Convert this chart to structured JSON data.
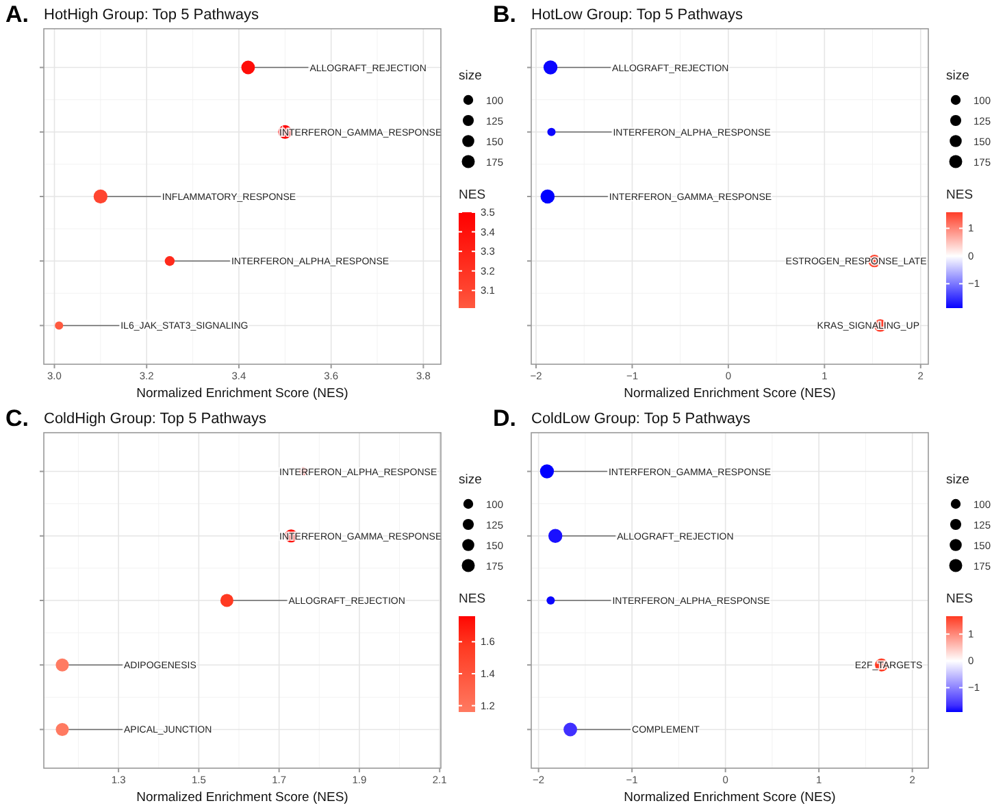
{
  "chart_data": [
    {
      "type": "bubble",
      "annotations": [
        "A."
      ],
      "title": "HotHigh Group: Top 5 Pathways",
      "xlabel": "Normalized Enrichment Score (NES)",
      "orientation": "horizontal",
      "tick_labels": "x",
      "grid": true,
      "legend_title": "size",
      "size_legend": [
        100,
        125,
        150,
        175
      ],
      "clabel": "NES",
      "clim": [
        3.01,
        3.5
      ],
      "cticks": [
        3.1,
        3.2,
        3.3,
        3.4,
        3.5
      ],
      "xlim": [
        2.977,
        3.838
      ],
      "xticks": [
        {
          "value": 3,
          "label": "3.0"
        },
        3.2,
        3.4,
        3.6,
        3.8
      ],
      "categories": [
        "ALLOGRAFT_REJECTION",
        "INTERFERON_GAMMA_RESPONSE",
        "INFLAMMATORY_RESPONSE",
        "INTERFERON_ALPHA_RESPONSE",
        "IL6_JAK_STAT3_SIGNALING"
      ],
      "values": [
        3.42,
        3.5,
        3.1,
        3.25,
        3.01
      ],
      "sizes": [
        190,
        190,
        200,
        100,
        71
      ],
      "cvalues": [
        3.42,
        3.5,
        3.1,
        3.25,
        3.01
      ],
      "colors": [
        "#ff0d08",
        "#ff0000",
        "#ff4530",
        "#ff2a1c",
        "#ff5a40"
      ]
    },
    {
      "type": "bubble",
      "annotations": [
        "B."
      ],
      "title": "HotLow Group: Top 5 Pathways",
      "xlabel": "Normalized Enrichment Score (NES)",
      "orientation": "horizontal",
      "tick_labels": "x",
      "grid": true,
      "legend_title": "size",
      "size_legend": [
        100,
        125,
        150,
        175
      ],
      "clabel": "NES",
      "clim": [
        -1.88,
        1.58
      ],
      "cticks": [
        {
          "value": -1,
          "label": "−1"
        },
        0,
        1
      ],
      "xlim": [
        -2.05,
        2.08
      ],
      "xticks": [
        {
          "value": -2,
          "label": "−2"
        },
        {
          "value": -1,
          "label": "−1"
        },
        0,
        1,
        2
      ],
      "categories": [
        "ALLOGRAFT_REJECTION",
        "INTERFERON_ALPHA_RESPONSE",
        "INTERFERON_GAMMA_RESPONSE",
        "ESTROGEN_RESPONSE_LATE",
        "KRAS_SIGNALING_UP"
      ],
      "values": [
        -1.85,
        -1.84,
        -1.88,
        1.52,
        1.58
      ],
      "sizes": [
        200,
        71,
        205,
        160,
        160
      ],
      "cvalues": [
        -1.85,
        -1.84,
        -1.88,
        1.52,
        1.58
      ],
      "colors": [
        "#0a05ff",
        "#0c06ff",
        "#0000ff",
        "#ff4530",
        "#ff3d2a"
      ]
    },
    {
      "type": "bubble",
      "annotations": [
        "C."
      ],
      "title": "ColdHigh Group: Top 5 Pathways",
      "xlabel": "Normalized Enrichment Score (NES)",
      "orientation": "horizontal",
      "tick_labels": "x",
      "grid": true,
      "legend_title": "size",
      "size_legend": [
        100,
        125,
        150,
        175
      ],
      "clabel": "NES",
      "clim": [
        1.16,
        1.76
      ],
      "cticks": [
        1.2,
        1.4,
        1.6
      ],
      "xlim": [
        1.114,
        2.103
      ],
      "xticks": [
        1.3,
        1.5,
        1.7,
        1.9,
        2.1
      ],
      "categories": [
        "INTERFERON_ALPHA_RESPONSE",
        "INTERFERON_GAMMA_RESPONSE",
        "ALLOGRAFT_REJECTION",
        "ADIPOGENESIS",
        "APICAL_JUNCTION"
      ],
      "values": [
        1.76,
        1.73,
        1.57,
        1.16,
        1.16
      ],
      "sizes": [
        70,
        175,
        175,
        175,
        175
      ],
      "cvalues": [
        1.76,
        1.73,
        1.57,
        1.16,
        1.16
      ],
      "colors": [
        "#ff0000",
        "#ff1008",
        "#ff3a22",
        "#ff7b62",
        "#ff7a61"
      ]
    },
    {
      "type": "bubble",
      "annotations": [
        "D."
      ],
      "title": "ColdLow Group: Top 5 Pathways",
      "xlabel": "Normalized Enrichment Score (NES)",
      "orientation": "horizontal",
      "tick_labels": "x",
      "grid": true,
      "legend_title": "size",
      "size_legend": [
        100,
        125,
        150,
        175
      ],
      "clabel": "NES",
      "clim": [
        -1.91,
        1.67
      ],
      "cticks": [
        {
          "value": -1,
          "label": "−1"
        },
        0,
        1
      ],
      "xlim": [
        -2.078,
        2.171
      ],
      "xticks": [
        {
          "value": -2,
          "label": "−2"
        },
        {
          "value": -1,
          "label": "−1"
        },
        0,
        1,
        2
      ],
      "categories": [
        "INTERFERON_GAMMA_RESPONSE",
        "ALLOGRAFT_REJECTION",
        "INTERFERON_ALPHA_RESPONSE",
        "E2F_TARGETS",
        "COMPLEMENT"
      ],
      "values": [
        -1.91,
        -1.82,
        -1.87,
        1.67,
        -1.66
      ],
      "sizes": [
        200,
        200,
        71,
        175,
        190
      ],
      "cvalues": [
        -1.91,
        -1.82,
        -1.87,
        1.67,
        -1.66
      ],
      "colors": [
        "#0000ff",
        "#1a10ff",
        "#0a05ff",
        "#ff3a22",
        "#4030ff"
      ]
    }
  ]
}
